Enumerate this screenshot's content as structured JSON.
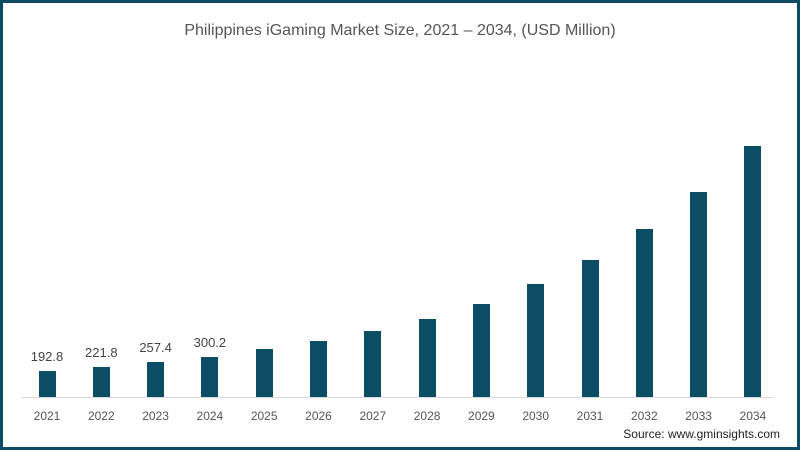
{
  "title": "Philippines iGaming Market Size, 2021 – 2034, (USD Million)",
  "source": "Source: www.gminsights.com",
  "colors": {
    "bar": "#0c4d66",
    "border": "#0e4a64"
  },
  "chart_data": {
    "type": "bar",
    "title": "Philippines iGaming Market Size, 2021 – 2034, (USD Million)",
    "xlabel": "",
    "ylabel": "USD Million",
    "categories": [
      "2021",
      "2022",
      "2023",
      "2024",
      "2025",
      "2026",
      "2027",
      "2028",
      "2029",
      "2030",
      "2031",
      "2032",
      "2033",
      "2034"
    ],
    "values": [
      192.8,
      221.8,
      257.4,
      300.2,
      355,
      415,
      490,
      580,
      690,
      840,
      1020,
      1250,
      1530,
      1870
    ],
    "data_labels": [
      "192.8",
      "221.8",
      "257.4",
      "300.2",
      "",
      "",
      "",
      "",
      "",
      "",
      "",
      "",
      "",
      ""
    ],
    "grid": false,
    "legend": "none"
  }
}
